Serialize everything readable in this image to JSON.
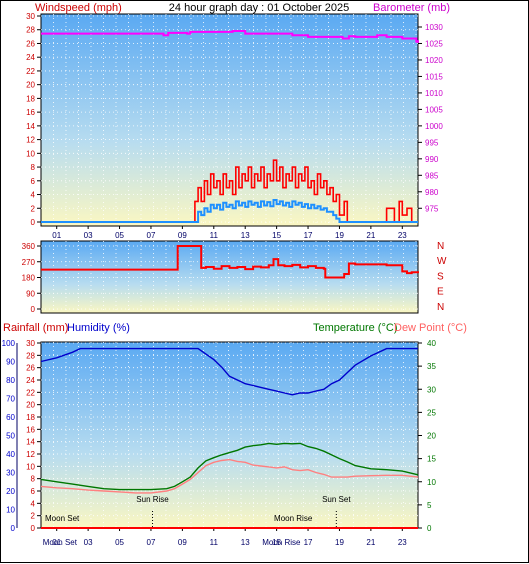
{
  "header": {
    "left_label": "Windspeed (mph)",
    "title": "24 hour graph day : 01 October 2025",
    "right_label": "Barometer (mb)"
  },
  "colors": {
    "windspeed": "#ff0000",
    "gust": "#ff0000",
    "avg_wind": "#1e90ff",
    "barometer": "#ff00ff",
    "direction": "#ff0000",
    "humidity": "#0000cc",
    "temperature": "#007700",
    "dewpoint": "#ff8080",
    "rainfall": "#ff0000",
    "axis_red": "#cc0000",
    "axis_magenta": "#cc00cc",
    "axis_green": "#007700",
    "axis_blue": "#0000cc"
  },
  "chart_data": [
    {
      "type": "line",
      "name": "wind-and-barometer",
      "x_ticks": [
        "01",
        "03",
        "05",
        "07",
        "09",
        "11",
        "13",
        "15",
        "17",
        "19",
        "21",
        "23"
      ],
      "y_left": {
        "label": "Windspeed (mph)",
        "ticks": [
          "0",
          "2",
          "4",
          "6",
          "8",
          "10",
          "12",
          "14",
          "16",
          "18",
          "20",
          "22",
          "24",
          "26",
          "28",
          "30"
        ],
        "range": [
          0,
          30
        ]
      },
      "y_right": {
        "label": "Barometer (mb)",
        "ticks": [
          "975",
          "980",
          "985",
          "990",
          "995",
          "1000",
          "1005",
          "1010",
          "1015",
          "1020",
          "1025",
          "1030"
        ],
        "range": [
          975,
          1033
        ]
      },
      "series": [
        {
          "key": "barometer",
          "x": [
            0,
            7.3,
            7.8,
            8.1,
            9.3,
            9.5,
            10.5,
            12,
            12.2,
            13,
            14,
            15,
            16,
            17,
            18,
            19.2,
            19.6,
            20,
            21,
            21.4,
            22,
            23,
            23.7,
            23.9,
            24
          ],
          "values": [
            1028,
            1028,
            1027.5,
            1028.2,
            1028,
            1028.5,
            1028.5,
            1028.5,
            1028.8,
            1028,
            1028,
            1028,
            1027.5,
            1027,
            1027,
            1026.5,
            1027.2,
            1027,
            1027,
            1027.5,
            1027,
            1026.5,
            1026.5,
            1025.5,
            1026
          ]
        },
        {
          "key": "gust",
          "x": [
            0,
            8.9,
            9.6,
            9.8,
            10,
            10.2,
            10.4,
            10.6,
            10.8,
            11,
            11.2,
            11.4,
            11.6,
            11.8,
            12,
            12.2,
            12.4,
            12.6,
            12.8,
            13,
            13.2,
            13.4,
            13.6,
            13.8,
            14,
            14.2,
            14.4,
            14.6,
            14.8,
            15,
            15.2,
            15.4,
            15.6,
            15.8,
            16,
            16.2,
            16.4,
            16.6,
            16.8,
            17,
            17.2,
            17.4,
            17.6,
            17.8,
            18,
            18.2,
            18.4,
            18.6,
            18.8,
            19,
            19.3,
            19.5,
            20,
            21.6,
            22,
            22.5,
            22.8,
            23,
            23.3,
            23.6,
            24
          ],
          "values": [
            0,
            0,
            0,
            3,
            5,
            3,
            6,
            4,
            7,
            5,
            6,
            4,
            7,
            5,
            6,
            4,
            8,
            5,
            7,
            6,
            8,
            5,
            7,
            6,
            8,
            5,
            7,
            6,
            9,
            6,
            8,
            5,
            7,
            6,
            8,
            5,
            7,
            6,
            8,
            5,
            6,
            4,
            7,
            5,
            6,
            4,
            5,
            3,
            4,
            1,
            3,
            0,
            0,
            0,
            2,
            0,
            3,
            1,
            2,
            0,
            0
          ]
        },
        {
          "key": "avg_wind",
          "x": [
            0,
            9.8,
            10,
            10.2,
            10.4,
            10.6,
            10.8,
            11,
            11.2,
            11.4,
            11.6,
            11.8,
            12,
            12.2,
            12.4,
            12.6,
            12.8,
            13,
            13.2,
            13.4,
            13.6,
            13.8,
            14,
            14.2,
            14.4,
            14.6,
            14.8,
            15,
            15.2,
            15.4,
            15.6,
            15.8,
            16,
            16.2,
            16.4,
            16.6,
            16.8,
            17,
            17.2,
            17.4,
            17.6,
            17.8,
            18,
            18.2,
            18.4,
            18.6,
            18.8,
            19,
            24
          ],
          "values": [
            0,
            0,
            1.5,
            1,
            2,
            1.5,
            2.5,
            2,
            2.5,
            1.8,
            2.8,
            2.2,
            2.5,
            2,
            3,
            2.4,
            2.8,
            2.2,
            3,
            2.5,
            2.8,
            2.2,
            3,
            2.4,
            2.9,
            2.3,
            3.2,
            2.6,
            3,
            2.4,
            2.8,
            2.2,
            3,
            2.5,
            2.8,
            2.2,
            2.6,
            2,
            2.5,
            2,
            2.3,
            1.8,
            2,
            1.5,
            1.5,
            1,
            0.5,
            0,
            0
          ]
        }
      ]
    },
    {
      "type": "line",
      "name": "wind-direction",
      "y_left": {
        "ticks": [
          "0",
          "90",
          "180",
          "270",
          "360"
        ],
        "range": [
          0,
          360
        ]
      },
      "y_right_labels": [
        "N",
        "W",
        "S",
        "E",
        "N"
      ],
      "series": [
        {
          "key": "direction",
          "x": [
            0,
            8.5,
            8.7,
            9.9,
            10.2,
            10.5,
            11,
            11.5,
            12,
            12.5,
            13,
            13.5,
            14,
            14.5,
            14.8,
            15.1,
            15.5,
            16,
            16.5,
            17,
            17.5,
            18,
            18.1,
            19.2,
            19.3,
            19.6,
            20,
            21,
            22,
            22.5,
            23,
            23.3,
            23.6,
            24
          ],
          "values": [
            225,
            225,
            360,
            360,
            235,
            240,
            230,
            245,
            235,
            240,
            228,
            242,
            238,
            250,
            285,
            250,
            245,
            252,
            238,
            245,
            235,
            230,
            180,
            180,
            200,
            260,
            255,
            255,
            250,
            250,
            215,
            205,
            210,
            205
          ]
        }
      ]
    },
    {
      "type": "line",
      "name": "temperature-humidity-rain",
      "header_left": "Rainfall (mm)",
      "header_humidity": "Humidity (%)",
      "header_right": "Temperature (°C)",
      "header_dew": "Dew Point (°C)",
      "x_ticks": [
        "01",
        "03",
        "05",
        "07",
        "09",
        "11",
        "13",
        "15",
        "17",
        "19",
        "21",
        "23"
      ],
      "x_tick_overlays": [
        "Moon Set",
        "Moon Rise"
      ],
      "humidity_ticks": [
        "0",
        "10",
        "20",
        "30",
        "40",
        "50",
        "60",
        "70",
        "80",
        "90",
        "100"
      ],
      "rain_ticks": [
        "0",
        "2",
        "4",
        "6",
        "8",
        "10",
        "12",
        "14",
        "16",
        "18",
        "20",
        "22",
        "24",
        "26",
        "28",
        "30"
      ],
      "temp_ticks": [
        "0",
        "5",
        "10",
        "15",
        "20",
        "25",
        "30",
        "35",
        "40"
      ],
      "humidity_range": [
        0,
        100
      ],
      "temp_range": [
        0,
        40
      ],
      "markers": [
        {
          "label": "Moon Set",
          "hour": 0.0,
          "line": false
        },
        {
          "label": "Sun Rise",
          "hour": 7.1,
          "line": true
        },
        {
          "label": "Moon Rise",
          "hour": 15.6,
          "line": false
        },
        {
          "label": "Sun Set",
          "hour": 18.8,
          "line": true
        }
      ],
      "series": [
        {
          "key": "humidity",
          "x": [
            0,
            1,
            2,
            2.5,
            3,
            4,
            5,
            6,
            7,
            8,
            9,
            10,
            10.5,
            11,
            11.5,
            12,
            12.5,
            13,
            13.5,
            14,
            14.5,
            15,
            15.5,
            16,
            16.5,
            17,
            17.5,
            18,
            18.5,
            19,
            19.5,
            20,
            21,
            22,
            23,
            24
          ],
          "values": [
            90,
            92,
            95,
            97,
            97,
            97,
            97,
            97,
            97,
            97,
            97,
            97,
            94,
            91,
            87,
            82,
            80,
            78,
            77,
            76,
            75,
            74,
            73,
            72,
            73,
            73,
            74,
            75,
            78,
            80,
            84,
            88,
            93,
            97,
            97,
            97
          ]
        },
        {
          "key": "temperature",
          "x": [
            0,
            1,
            2,
            3,
            4,
            5,
            6,
            7,
            8,
            8.5,
            9,
            9.5,
            10,
            10.5,
            11,
            11.5,
            12,
            12.5,
            13,
            13.5,
            14,
            14.5,
            15,
            15.5,
            16,
            16.5,
            17,
            17.5,
            18,
            18.5,
            19,
            19.5,
            20,
            21,
            22,
            23,
            24
          ],
          "values": [
            10.5,
            10,
            9.5,
            9,
            8.5,
            8.3,
            8.3,
            8.3,
            8.5,
            9,
            10,
            11,
            13,
            14.5,
            15.2,
            15.8,
            16.3,
            16.8,
            17.5,
            17.8,
            18,
            18.3,
            18.1,
            18.3,
            18.2,
            18.3,
            17.6,
            17.2,
            16.6,
            15.8,
            15,
            14.3,
            13.5,
            12.8,
            12.6,
            12.3,
            11.5
          ]
        },
        {
          "key": "dewpoint",
          "x": [
            0,
            1,
            2,
            3,
            4,
            5,
            6,
            7,
            8,
            8.5,
            9,
            9.5,
            10,
            10.5,
            11,
            11.5,
            12,
            12.5,
            13,
            13.5,
            14,
            14.5,
            15,
            15.5,
            16,
            16.5,
            17,
            17.5,
            18,
            18.5,
            19,
            19.5,
            20,
            21,
            22,
            23,
            24
          ],
          "values": [
            9,
            8.7,
            8.5,
            8.2,
            8,
            7.8,
            7.6,
            7.6,
            8,
            8.5,
            9.5,
            10.5,
            12,
            13.5,
            14.2,
            14.6,
            14.8,
            14.4,
            14.2,
            13.6,
            13.4,
            13.2,
            13,
            13.2,
            12.6,
            12.4,
            12.6,
            12,
            11.6,
            11,
            11,
            11,
            11.2,
            11.3,
            11.4,
            11.4,
            11
          ]
        },
        {
          "key": "rainfall",
          "x": [
            0,
            24
          ],
          "values": [
            0,
            0
          ]
        }
      ]
    }
  ]
}
